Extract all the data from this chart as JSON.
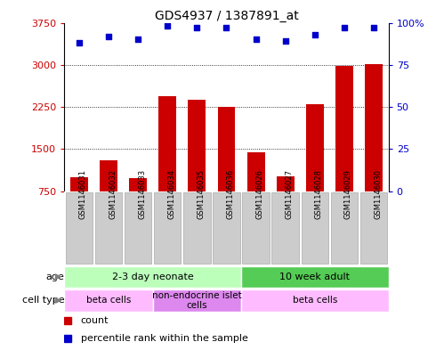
{
  "title": "GDS4937 / 1387891_at",
  "samples": [
    "GSM1146031",
    "GSM1146032",
    "GSM1146033",
    "GSM1146034",
    "GSM1146035",
    "GSM1146036",
    "GSM1146026",
    "GSM1146027",
    "GSM1146028",
    "GSM1146029",
    "GSM1146030"
  ],
  "bar_values": [
    1000,
    1300,
    990,
    2450,
    2380,
    2250,
    1450,
    1020,
    2300,
    2980,
    3020
  ],
  "percentile_values": [
    88,
    92,
    90,
    98,
    97,
    97,
    90,
    89,
    93,
    97,
    97
  ],
  "bar_color": "#cc0000",
  "dot_color": "#0000cc",
  "ylim_left": [
    750,
    3750
  ],
  "yticks_left": [
    750,
    1500,
    2250,
    3000,
    3750
  ],
  "ylim_right": [
    0,
    100
  ],
  "yticks_right": [
    0,
    25,
    50,
    75,
    100
  ],
  "ytick_labels_right": [
    "0",
    "25",
    "50",
    "75",
    "100%"
  ],
  "grid_values": [
    1500,
    2250,
    3000
  ],
  "age_groups": [
    {
      "label": "2-3 day neonate",
      "start": 0,
      "end": 6,
      "color": "#bbffbb"
    },
    {
      "label": "10 week adult",
      "start": 6,
      "end": 11,
      "color": "#55cc55"
    }
  ],
  "cell_type_groups": [
    {
      "label": "beta cells",
      "start": 0,
      "end": 3,
      "color": "#ffbbff"
    },
    {
      "label": "non-endocrine islet\ncells",
      "start": 3,
      "end": 6,
      "color": "#dd88ee"
    },
    {
      "label": "beta cells",
      "start": 6,
      "end": 11,
      "color": "#ffbbff"
    }
  ],
  "legend_items": [
    {
      "label": "count",
      "color": "#cc0000"
    },
    {
      "label": "percentile rank within the sample",
      "color": "#0000cc"
    }
  ],
  "bar_width": 0.6,
  "left_tick_color": "#cc0000",
  "right_tick_color": "#0000cc",
  "sample_box_color": "#cccccc",
  "sample_box_edge": "#aaaaaa"
}
